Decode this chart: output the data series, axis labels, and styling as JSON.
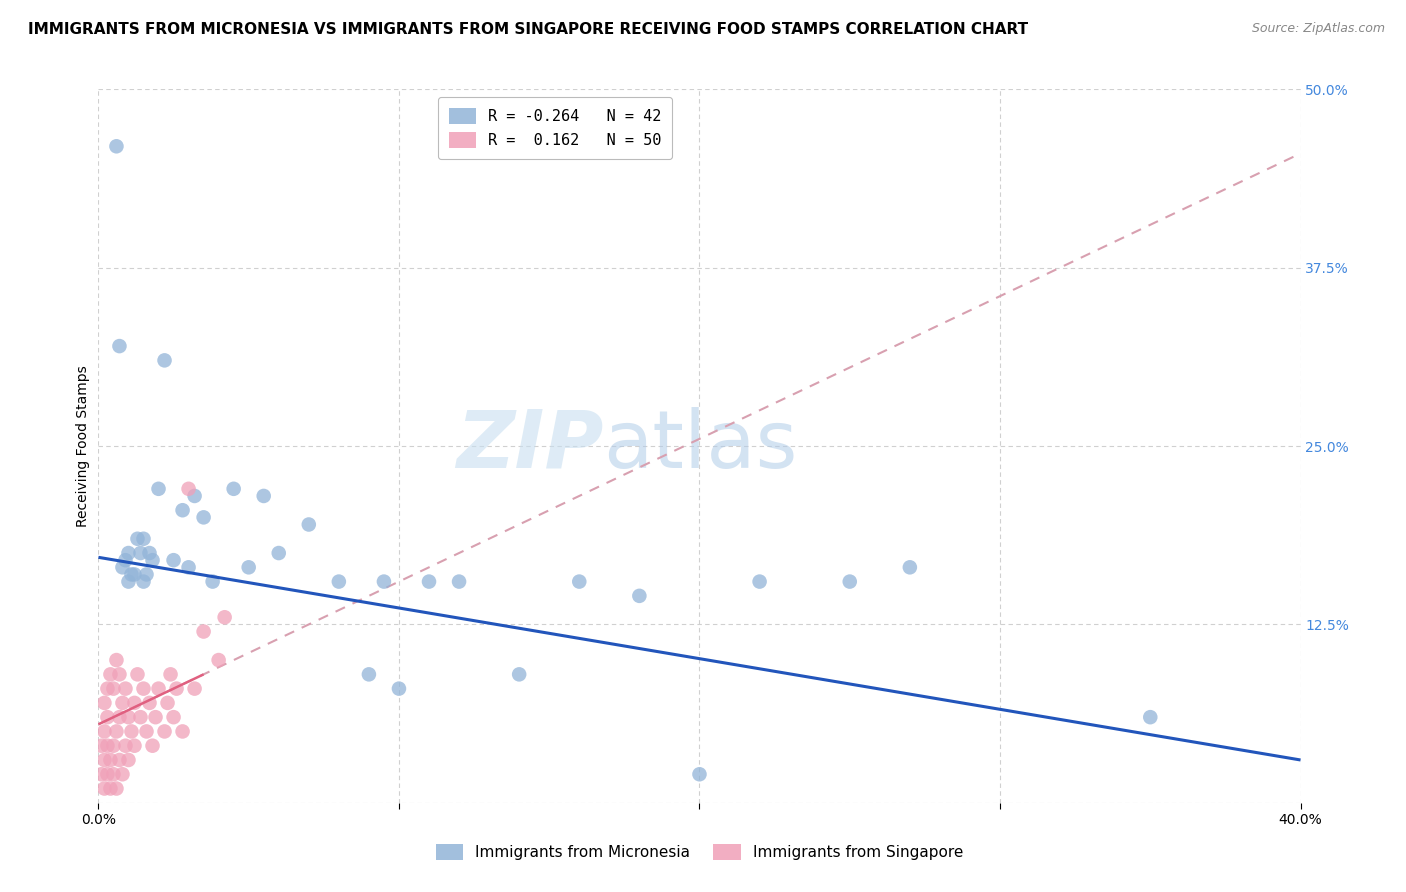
{
  "title": "IMMIGRANTS FROM MICRONESIA VS IMMIGRANTS FROM SINGAPORE RECEIVING FOOD STAMPS CORRELATION CHART",
  "source": "Source: ZipAtlas.com",
  "ylabel": "Receiving Food Stamps",
  "xlim": [
    0.0,
    0.4
  ],
  "ylim": [
    0.0,
    0.5
  ],
  "xtick_vals": [
    0.0,
    0.1,
    0.2,
    0.3,
    0.4
  ],
  "yticks_right": [
    0.0,
    0.125,
    0.25,
    0.375,
    0.5
  ],
  "yticklabels_right": [
    "",
    "12.5%",
    "25.0%",
    "37.5%",
    "50.0%"
  ],
  "watermark_part1": "ZIP",
  "watermark_part2": "atlas",
  "micronesia_color": "#92b4d8",
  "singapore_color": "#f0a0b8",
  "micronesia_line_color": "#2255bb",
  "singapore_line_color": "#e06080",
  "singapore_dash_color": "#d8a0b0",
  "micronesia_x": [
    0.006,
    0.008,
    0.009,
    0.01,
    0.01,
    0.011,
    0.012,
    0.013,
    0.014,
    0.015,
    0.015,
    0.016,
    0.017,
    0.018,
    0.02,
    0.022,
    0.025,
    0.028,
    0.03,
    0.032,
    0.035,
    0.038,
    0.045,
    0.05,
    0.055,
    0.06,
    0.07,
    0.08,
    0.09,
    0.095,
    0.1,
    0.11,
    0.12,
    0.14,
    0.16,
    0.18,
    0.2,
    0.22,
    0.25,
    0.27,
    0.35,
    0.007
  ],
  "micronesia_y": [
    0.46,
    0.165,
    0.17,
    0.175,
    0.155,
    0.16,
    0.16,
    0.185,
    0.175,
    0.185,
    0.155,
    0.16,
    0.175,
    0.17,
    0.22,
    0.31,
    0.17,
    0.205,
    0.165,
    0.215,
    0.2,
    0.155,
    0.22,
    0.165,
    0.215,
    0.175,
    0.195,
    0.155,
    0.09,
    0.155,
    0.08,
    0.155,
    0.155,
    0.09,
    0.155,
    0.145,
    0.02,
    0.155,
    0.155,
    0.165,
    0.06,
    0.32
  ],
  "singapore_x": [
    0.001,
    0.001,
    0.002,
    0.002,
    0.002,
    0.002,
    0.003,
    0.003,
    0.003,
    0.003,
    0.004,
    0.004,
    0.004,
    0.005,
    0.005,
    0.005,
    0.006,
    0.006,
    0.006,
    0.007,
    0.007,
    0.007,
    0.008,
    0.008,
    0.009,
    0.009,
    0.01,
    0.01,
    0.011,
    0.012,
    0.012,
    0.013,
    0.014,
    0.015,
    0.016,
    0.017,
    0.018,
    0.019,
    0.02,
    0.022,
    0.023,
    0.024,
    0.025,
    0.026,
    0.028,
    0.03,
    0.032,
    0.035,
    0.04,
    0.042
  ],
  "singapore_y": [
    0.02,
    0.04,
    0.01,
    0.03,
    0.05,
    0.07,
    0.02,
    0.04,
    0.06,
    0.08,
    0.01,
    0.03,
    0.09,
    0.02,
    0.04,
    0.08,
    0.01,
    0.05,
    0.1,
    0.03,
    0.06,
    0.09,
    0.02,
    0.07,
    0.04,
    0.08,
    0.03,
    0.06,
    0.05,
    0.04,
    0.07,
    0.09,
    0.06,
    0.08,
    0.05,
    0.07,
    0.04,
    0.06,
    0.08,
    0.05,
    0.07,
    0.09,
    0.06,
    0.08,
    0.05,
    0.22,
    0.08,
    0.12,
    0.1,
    0.13
  ],
  "mic_line_x0": 0.0,
  "mic_line_y0": 0.172,
  "mic_line_x1": 0.4,
  "mic_line_y1": 0.03,
  "sing_line_x0": 0.0,
  "sing_line_y0": 0.055,
  "sing_line_x1": 0.4,
  "sing_line_y1": 0.455,
  "title_fontsize": 11,
  "axis_label_fontsize": 10,
  "tick_fontsize": 10,
  "source_fontsize": 9,
  "background_color": "#ffffff",
  "grid_color": "#d0d0d0",
  "right_tick_color": "#4488dd"
}
